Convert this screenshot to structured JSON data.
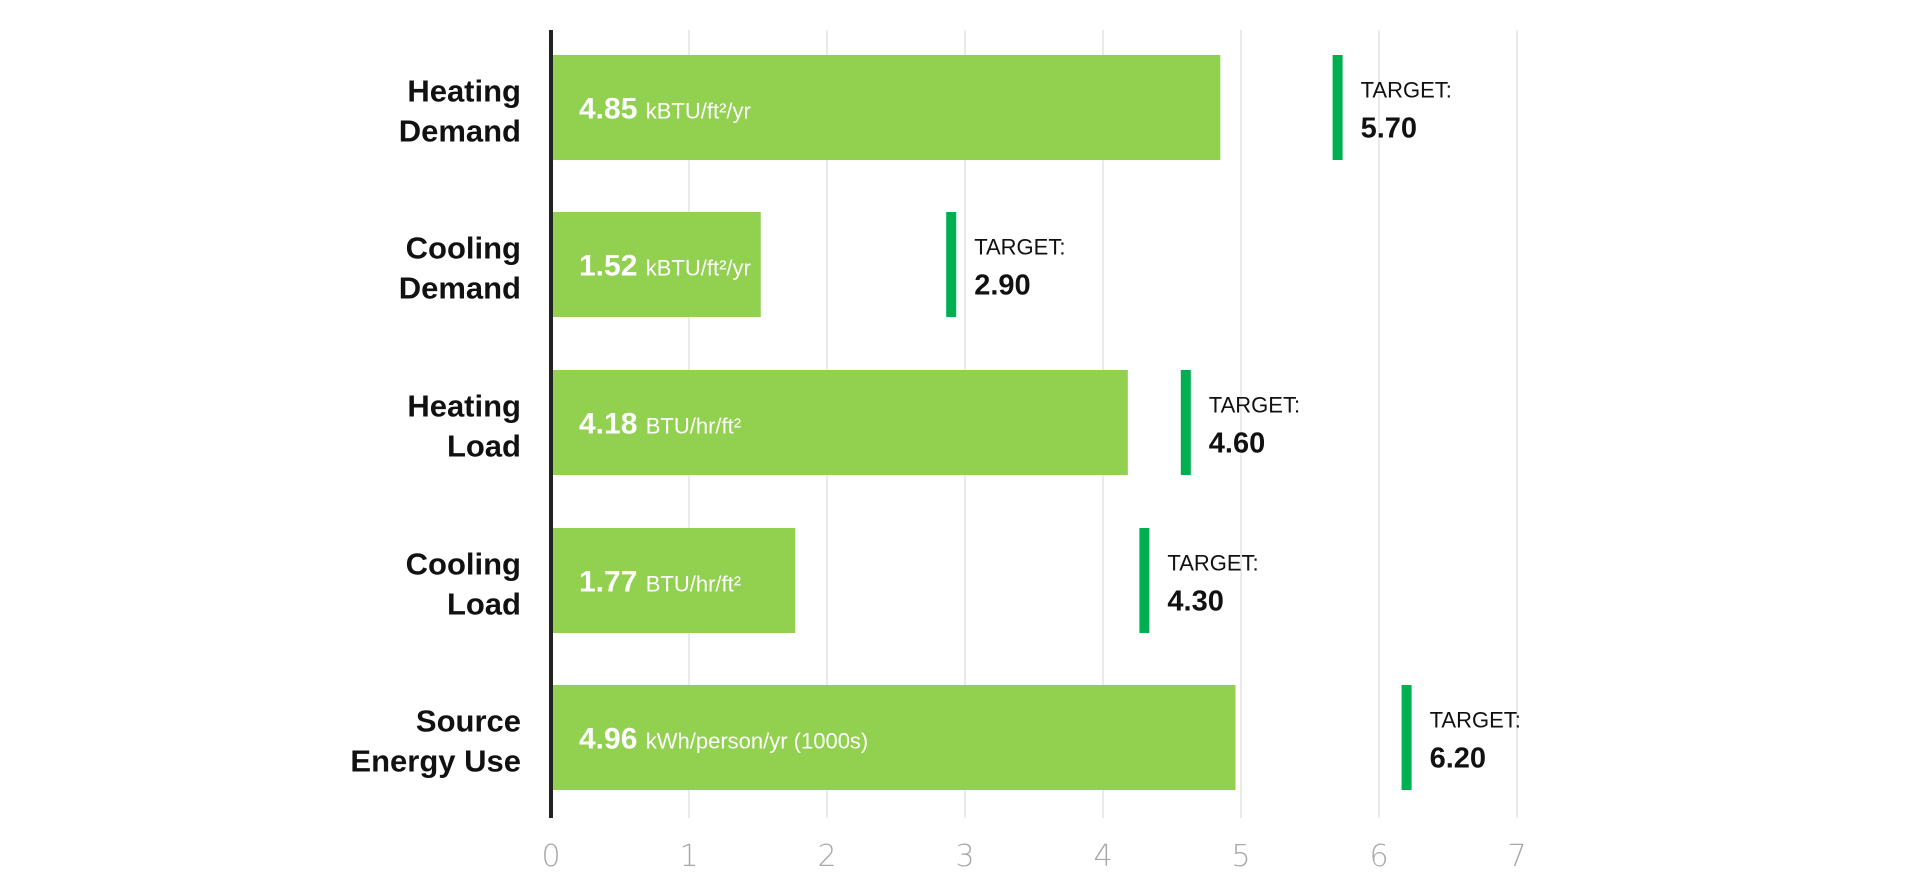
{
  "chart_data": {
    "type": "bar",
    "orientation": "horizontal",
    "title": "",
    "xlabel": "",
    "ylabel": "",
    "xlim": [
      0,
      7
    ],
    "x_ticks": [
      "0",
      "1",
      "2",
      "3",
      "4",
      "5",
      "6",
      "7"
    ],
    "grid": true,
    "categories": [
      [
        "Heating",
        "Demand"
      ],
      [
        "Cooling",
        "Demand"
      ],
      [
        "Heating",
        "Load"
      ],
      [
        "Cooling",
        "Load"
      ],
      [
        "Source",
        "Energy Use"
      ]
    ],
    "values": [
      4.85,
      1.52,
      4.18,
      1.77,
      4.96
    ],
    "value_labels": [
      "4.85",
      "1.52",
      "4.18",
      "1.77",
      "4.96"
    ],
    "units": [
      "kBTU/ft²/yr",
      "kBTU/ft²/yr",
      "BTU/hr/ft²",
      "BTU/hr/ft²",
      "kWh/person/yr (1000s)"
    ],
    "target_label": "TARGET:",
    "targets": [
      5.7,
      2.9,
      4.6,
      4.3,
      6.2
    ],
    "target_labels": [
      "5.70",
      "2.90",
      "4.60",
      "4.30",
      "6.20"
    ],
    "colors": {
      "bar": "#92d050",
      "target": "#00b050",
      "axis": "#222222",
      "grid": "#e3e3e3",
      "tick": "#a8a8a8"
    }
  }
}
